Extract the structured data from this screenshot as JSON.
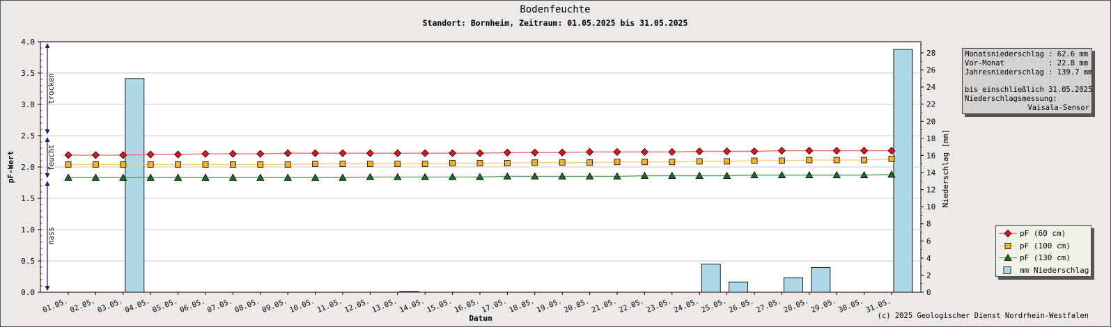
{
  "chart_data": {
    "type": "line",
    "title": "Bodenfeuchte",
    "subtitle": "Standort: Bornheim, Zeitraum: 01.05.2025 bis 31.05.2025",
    "xlabel": "Datum",
    "ylabel": "pF-Wert",
    "ylabel_right": "Niederschlag [mm]",
    "ylim": [
      0,
      4.0
    ],
    "ylim_right": [
      0,
      29.3
    ],
    "yticks": [
      "0.0",
      "0.5",
      "1.0",
      "1.5",
      "2.0",
      "2.5",
      "3.0",
      "3.5",
      "4.0"
    ],
    "yticks_right": [
      "0",
      "2",
      "4",
      "6",
      "8",
      "10",
      "12",
      "14",
      "16",
      "18",
      "20",
      "22",
      "24",
      "26",
      "28"
    ],
    "grid": true,
    "zones": [
      {
        "label": "trocken",
        "from": 2.5,
        "to": 4.0
      },
      {
        "label": "feucht",
        "from": 1.8,
        "to": 2.5
      },
      {
        "label": "nass",
        "from": 0.0,
        "to": 1.8
      }
    ],
    "categories": [
      "01.05.",
      "02.05.",
      "03.05.",
      "04.05.",
      "05.05.",
      "06.05.",
      "07.05.",
      "08.05.",
      "09.05.",
      "10.05.",
      "11.05.",
      "12.05.",
      "13.05.",
      "14.05.",
      "15.05.",
      "16.05.",
      "17.05.",
      "18.05.",
      "19.05.",
      "20.05.",
      "21.05.",
      "22.05.",
      "23.05.",
      "24.05.",
      "25.05.",
      "26.05.",
      "27.05.",
      "28.05.",
      "29.05.",
      "30.05.",
      "31.05."
    ],
    "series": [
      {
        "name": "pF (60 cm)",
        "color": "#e8101a",
        "marker": "diamond",
        "line": "#e87070",
        "values": [
          2.19,
          2.19,
          2.19,
          2.2,
          2.2,
          2.21,
          2.21,
          2.21,
          2.22,
          2.22,
          2.22,
          2.22,
          2.22,
          2.22,
          2.22,
          2.22,
          2.23,
          2.23,
          2.23,
          2.24,
          2.24,
          2.24,
          2.24,
          2.25,
          2.25,
          2.25,
          2.26,
          2.26,
          2.26,
          2.26,
          2.26
        ]
      },
      {
        "name": "pF (100 cm)",
        "color": "#f7b028",
        "marker": "square",
        "line": "#f4d070",
        "values": [
          2.04,
          2.04,
          2.04,
          2.04,
          2.04,
          2.04,
          2.04,
          2.04,
          2.04,
          2.05,
          2.05,
          2.05,
          2.05,
          2.05,
          2.06,
          2.06,
          2.06,
          2.07,
          2.07,
          2.07,
          2.08,
          2.08,
          2.08,
          2.09,
          2.09,
          2.1,
          2.1,
          2.11,
          2.11,
          2.11,
          2.13
        ]
      },
      {
        "name": "pF (130 cm)",
        "color": "#1a6e24",
        "marker": "triangle",
        "line": "#5aa060",
        "values": [
          1.83,
          1.83,
          1.83,
          1.83,
          1.83,
          1.83,
          1.83,
          1.83,
          1.83,
          1.83,
          1.83,
          1.84,
          1.84,
          1.84,
          1.84,
          1.84,
          1.85,
          1.85,
          1.85,
          1.85,
          1.85,
          1.86,
          1.86,
          1.86,
          1.86,
          1.87,
          1.87,
          1.87,
          1.87,
          1.87,
          1.88
        ]
      }
    ],
    "bars": {
      "name": "mm  Niederschlag",
      "color": "#add8e6",
      "axis": "right",
      "values": [
        0,
        0,
        25.0,
        0,
        0,
        0,
        0,
        0,
        0,
        0,
        0,
        0,
        0.1,
        0,
        0,
        0,
        0,
        0,
        0,
        0,
        0,
        0,
        0,
        3.3,
        1.2,
        0,
        1.7,
        2.9,
        0,
        0,
        28.4
      ]
    },
    "legend": "right"
  },
  "rain_info": {
    "monats_label": "Monatsniederschlag :",
    "monats_value": "62.6 mm",
    "vormonat_label": "Vor-Monat          :",
    "vormonat_value": "22.8 mm",
    "jahres_label": "Jahresniederschlag :",
    "jahres_value": "139.7 mm",
    "until": "bis einschließlich 31.05.2025",
    "measure_label": "Niederschlagsmessung:",
    "sensor": "Vaisala-Sensor"
  },
  "copyright": "(c) 2025 Geologischer Dienst Nordrhein-Westfalen"
}
